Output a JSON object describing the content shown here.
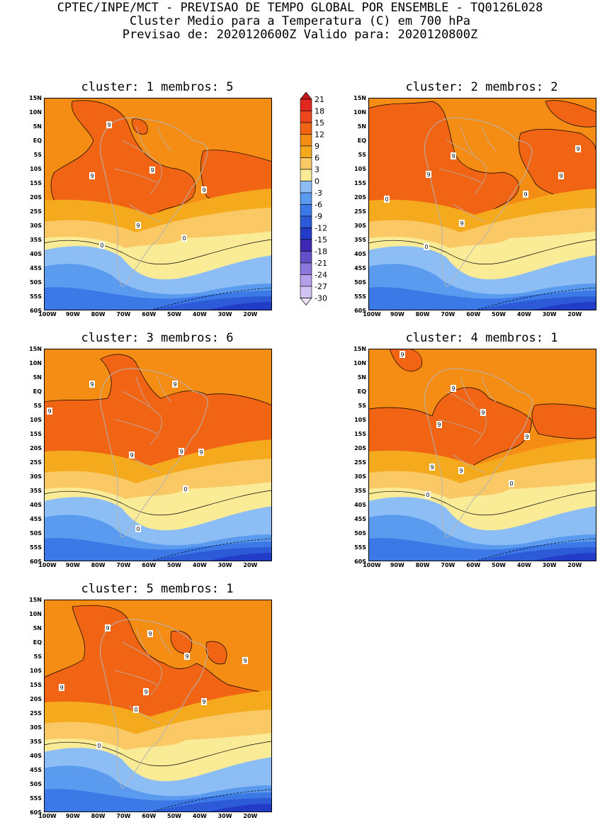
{
  "header": {
    "line1": "CPTEC/INPE/MCT - PREVISAO DE TEMPO GLOBAL POR ENSEMBLE - TQ0126L028",
    "line2": "Cluster Medio para a Temperatura (C) em 700 hPa",
    "line3": "Previsao de: 2020120600Z    Valido para: 2020120800Z"
  },
  "lat_ticks": [
    "15N",
    "10N",
    "5N",
    "EQ",
    "5S",
    "10S",
    "15S",
    "20S",
    "25S",
    "30S",
    "35S",
    "40S",
    "45S",
    "50S",
    "55S",
    "60S"
  ],
  "lon_ticks": [
    "100W",
    "90W",
    "80W",
    "70W",
    "60W",
    "50W",
    "40W",
    "30W",
    "20W"
  ],
  "colorbar": {
    "levels": [
      "21",
      "18",
      "15",
      "12",
      "9",
      "6",
      "3",
      "0",
      "-3",
      "-6",
      "-9",
      "-12",
      "-15",
      "-18",
      "-21",
      "-24",
      "-27",
      "-30"
    ],
    "colors": [
      "#c8141e",
      "#e0281e",
      "#f0461e",
      "#f06414",
      "#f58c14",
      "#f5aa1e",
      "#fac864",
      "#faeb96",
      "#8cbef5",
      "#5a9bef",
      "#3c78e6",
      "#2d5ad7",
      "#233cc8",
      "#3c28b4",
      "#6450c8",
      "#8c78dc",
      "#b4a0eb",
      "#d2c3f5",
      "#ebe1fa"
    ]
  },
  "panels": [
    {
      "title": "cluster: 1   membros: 5",
      "scenario": 1,
      "contour_labels": [
        {
          "t": "9"
        },
        {
          "t": "9"
        },
        {
          "t": "9"
        },
        {
          "t": "9"
        },
        {
          "t": "9"
        },
        {
          "t": "0"
        },
        {
          "t": "0"
        }
      ]
    },
    {
      "title": "cluster: 2   membros: 2",
      "scenario": 2,
      "contour_labels": [
        {
          "t": "9"
        },
        {
          "t": "9"
        },
        {
          "t": "9"
        },
        {
          "t": "9"
        },
        {
          "t": "9"
        },
        {
          "t": "9"
        },
        {
          "t": "0"
        },
        {
          "t": "0"
        }
      ]
    },
    {
      "title": "cluster: 3   membros: 6",
      "scenario": 3,
      "contour_labels": [
        {
          "t": "9"
        },
        {
          "t": "9"
        },
        {
          "t": "9"
        },
        {
          "t": "9"
        },
        {
          "t": "9"
        },
        {
          "t": "9"
        },
        {
          "t": "0"
        },
        {
          "t": "0"
        }
      ]
    },
    {
      "title": "cluster: 4   membros: 1",
      "scenario": 4,
      "contour_labels": [
        {
          "t": "9"
        },
        {
          "t": "9"
        },
        {
          "t": "9"
        },
        {
          "t": "9"
        },
        {
          "t": "9"
        },
        {
          "t": "9"
        },
        {
          "t": "9"
        },
        {
          "t": "0"
        },
        {
          "t": "0"
        }
      ]
    },
    {
      "title": "cluster: 5   membros: 1",
      "scenario": 5,
      "contour_labels": [
        {
          "t": "9"
        },
        {
          "t": "9"
        },
        {
          "t": "9"
        },
        {
          "t": "9"
        },
        {
          "t": "9"
        },
        {
          "t": "9"
        },
        {
          "t": "9"
        },
        {
          "t": "0"
        },
        {
          "t": "0"
        }
      ]
    }
  ]
}
